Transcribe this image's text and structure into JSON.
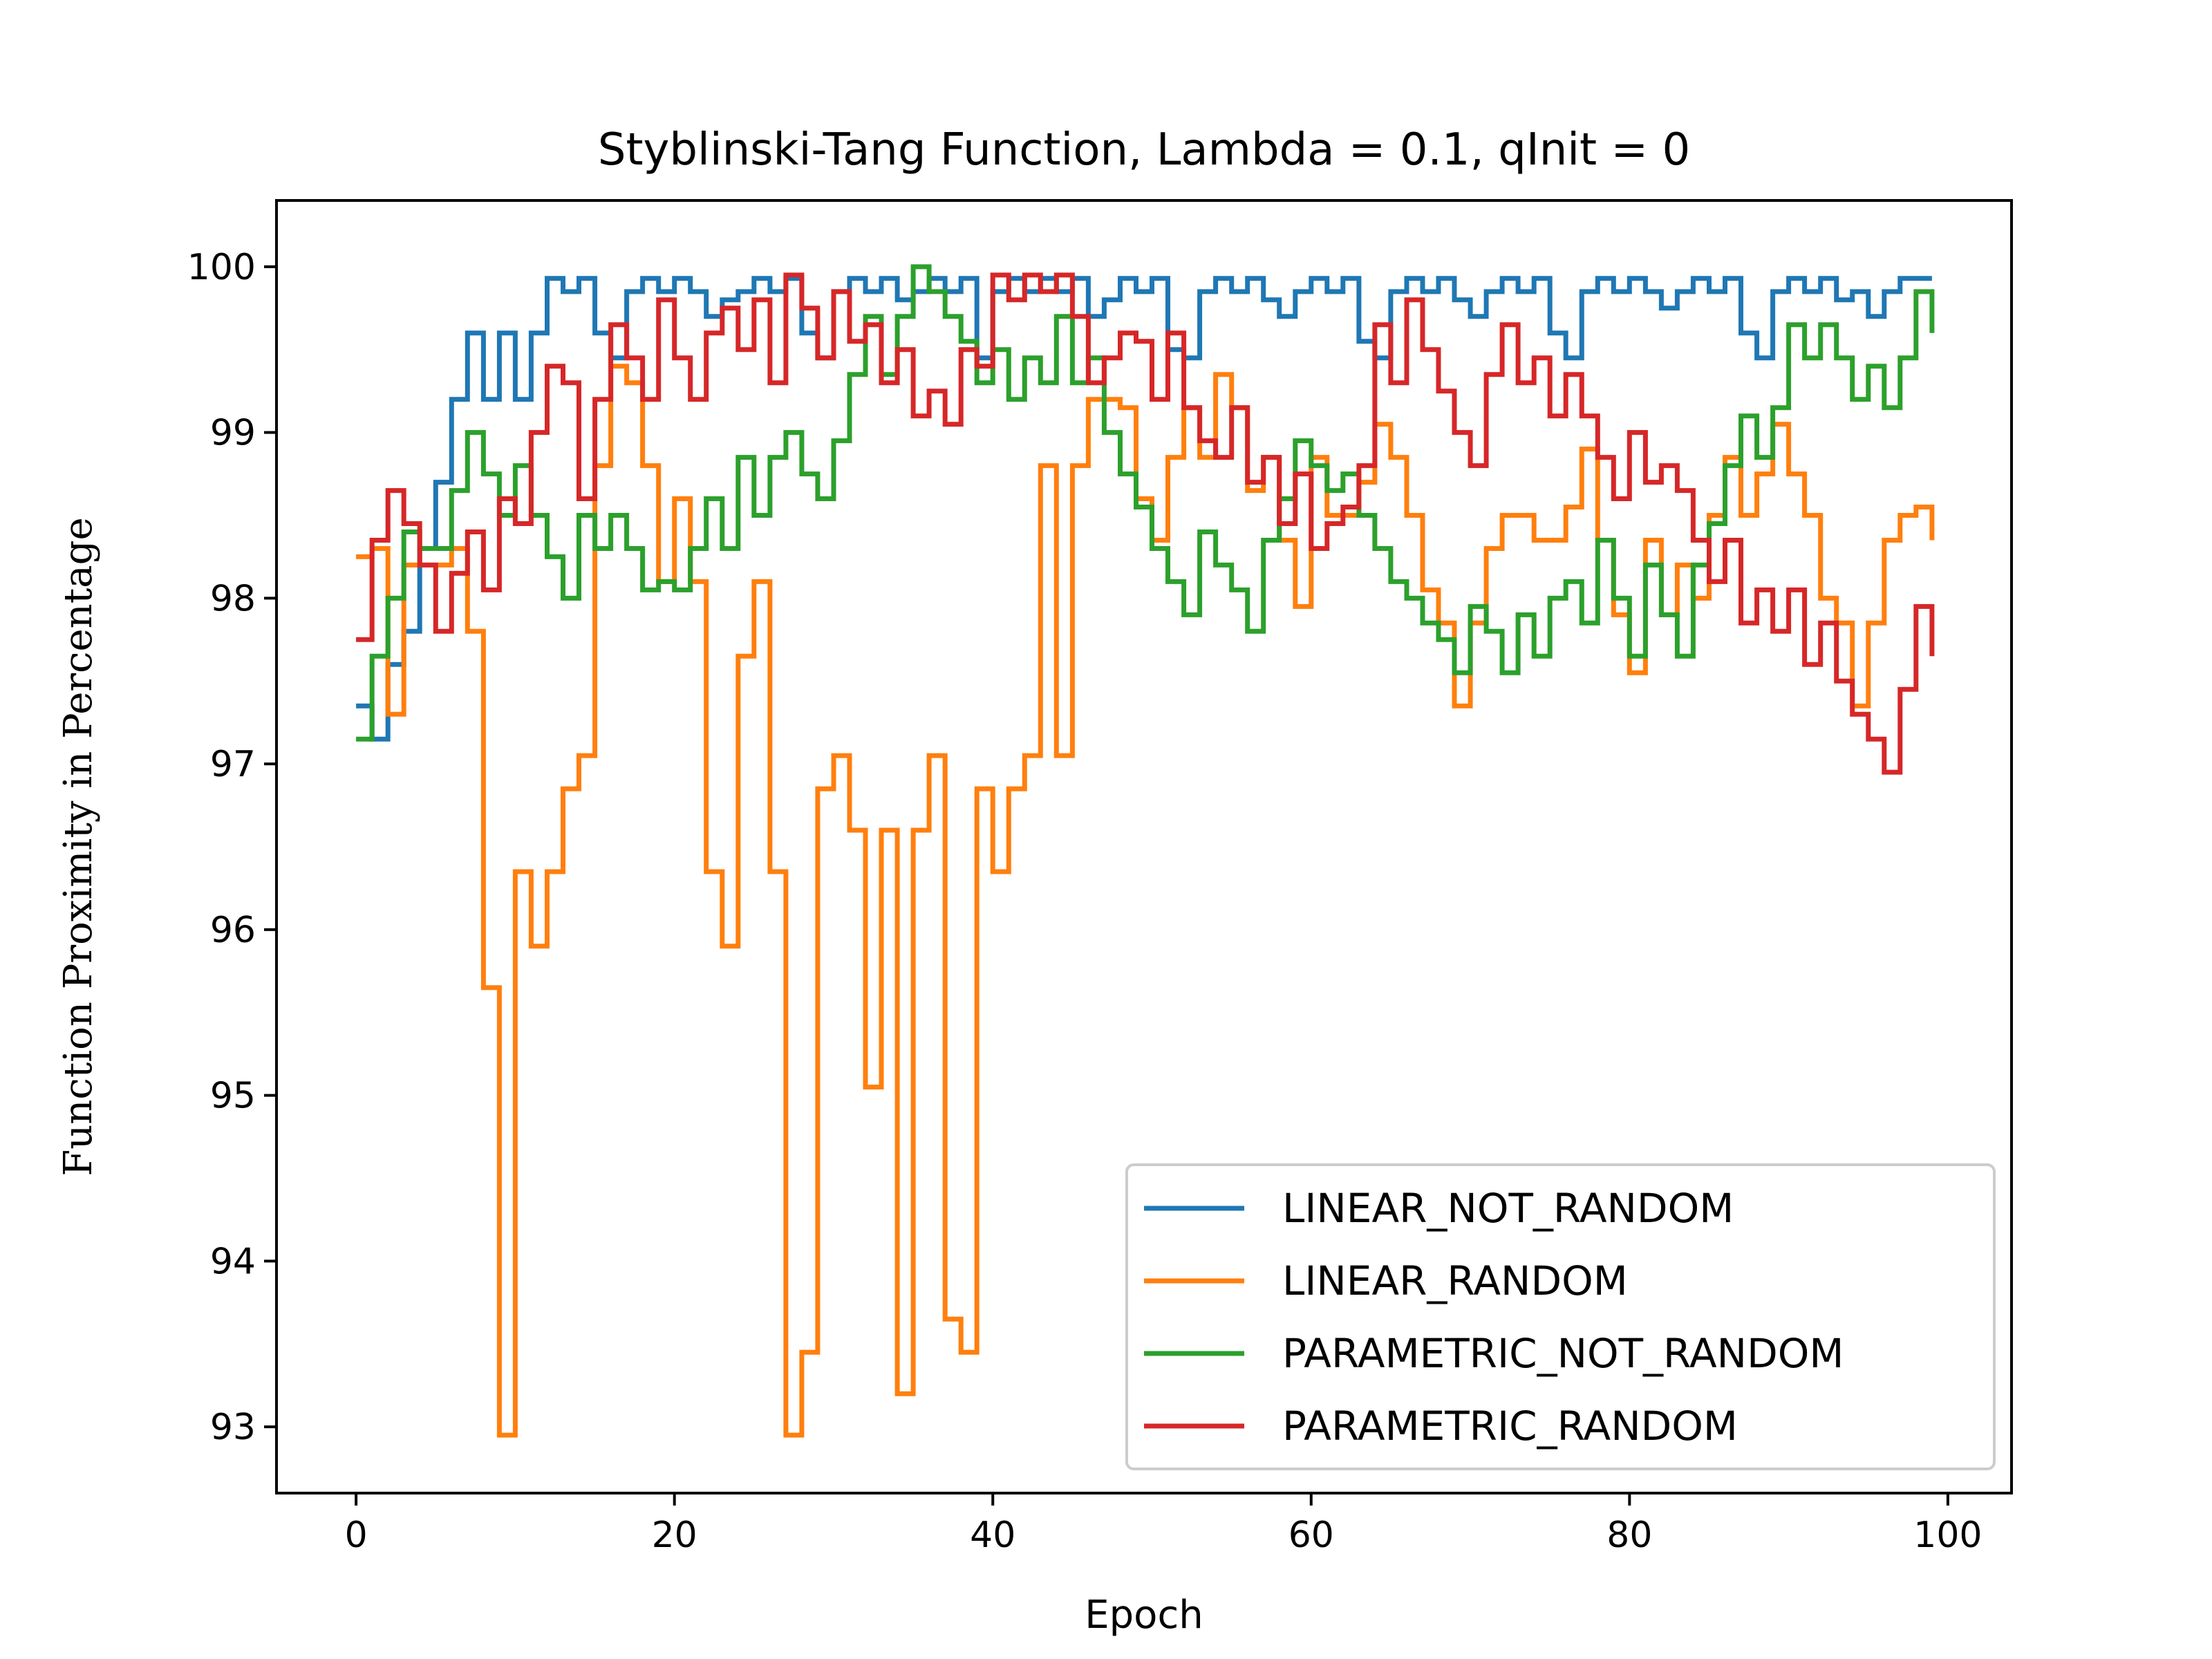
{
  "chart_data": {
    "type": "line",
    "drawstyle": "steps-post",
    "title": "Styblinski-Tang Function, Lambda = 0.1, qInit = 0",
    "xlabel": "Epoch",
    "ylabel": "Function Proximity in Percentage",
    "xlim": [
      -5,
      104
    ],
    "ylim": [
      92.6,
      100.4
    ],
    "xticks": [
      0,
      20,
      40,
      60,
      80,
      100
    ],
    "yticks": [
      93,
      94,
      95,
      96,
      97,
      98,
      99,
      100
    ],
    "grid": false,
    "legend_position": "lower-right",
    "x": [
      0,
      1,
      2,
      3,
      4,
      5,
      6,
      7,
      8,
      9,
      10,
      11,
      12,
      13,
      14,
      15,
      16,
      17,
      18,
      19,
      20,
      21,
      22,
      23,
      24,
      25,
      26,
      27,
      28,
      29,
      30,
      31,
      32,
      33,
      34,
      35,
      36,
      37,
      38,
      39,
      40,
      41,
      42,
      43,
      44,
      45,
      46,
      47,
      48,
      49,
      50,
      51,
      52,
      53,
      54,
      55,
      56,
      57,
      58,
      59,
      60,
      61,
      62,
      63,
      64,
      65,
      66,
      67,
      68,
      69,
      70,
      71,
      72,
      73,
      74,
      75,
      76,
      77,
      78,
      79,
      80,
      81,
      82,
      83,
      84,
      85,
      86,
      87,
      88,
      89,
      90,
      91,
      92,
      93,
      94,
      95,
      96,
      97,
      98,
      99
    ],
    "series": [
      {
        "name": "LINEAR_NOT_RANDOM",
        "color": "#1f77b4",
        "values": [
          97.35,
          97.15,
          97.6,
          97.8,
          98.3,
          98.7,
          99.2,
          99.6,
          99.2,
          99.6,
          99.2,
          99.6,
          99.93,
          99.85,
          99.93,
          99.6,
          99.45,
          99.85,
          99.93,
          99.85,
          99.93,
          99.85,
          99.7,
          99.8,
          99.85,
          99.93,
          99.85,
          99.93,
          99.6,
          99.45,
          99.85,
          99.93,
          99.85,
          99.93,
          99.8,
          99.85,
          99.93,
          99.85,
          99.93,
          99.45,
          99.85,
          99.93,
          99.85,
          99.93,
          99.85,
          99.93,
          99.7,
          99.8,
          99.93,
          99.85,
          99.93,
          99.5,
          99.45,
          99.85,
          99.93,
          99.85,
          99.93,
          99.8,
          99.7,
          99.85,
          99.93,
          99.85,
          99.93,
          99.55,
          99.45,
          99.85,
          99.93,
          99.85,
          99.93,
          99.8,
          99.7,
          99.85,
          99.93,
          99.85,
          99.93,
          99.6,
          99.45,
          99.85,
          99.93,
          99.85,
          99.93,
          99.85,
          99.75,
          99.85,
          99.93,
          99.85,
          99.93,
          99.6,
          99.45,
          99.85,
          99.93,
          99.85,
          99.93,
          99.8,
          99.85,
          99.7,
          99.85,
          99.93,
          99.93,
          99.93
        ]
      },
      {
        "name": "LINEAR_RANDOM",
        "color": "#ff7f0e",
        "values": [
          98.25,
          98.3,
          97.3,
          98.2,
          98.2,
          98.2,
          98.3,
          97.8,
          95.65,
          92.95,
          96.35,
          95.9,
          96.35,
          96.85,
          97.05,
          98.8,
          99.4,
          99.3,
          98.8,
          98.1,
          98.6,
          98.1,
          96.35,
          95.9,
          97.65,
          98.1,
          96.35,
          92.95,
          93.45,
          96.85,
          97.05,
          96.6,
          95.05,
          96.6,
          93.2,
          96.6,
          97.05,
          93.65,
          93.45,
          96.85,
          96.35,
          96.85,
          97.05,
          98.8,
          97.05,
          98.8,
          99.2,
          99.2,
          99.15,
          98.6,
          98.35,
          98.85,
          99.15,
          98.85,
          99.35,
          99.15,
          98.65,
          98.85,
          98.35,
          97.95,
          98.85,
          98.5,
          98.5,
          98.7,
          99.05,
          98.85,
          98.5,
          98.05,
          97.85,
          97.35,
          97.85,
          98.3,
          98.5,
          98.5,
          98.35,
          98.35,
          98.55,
          98.9,
          98.35,
          97.9,
          97.55,
          98.35,
          97.9,
          98.2,
          98.0,
          98.5,
          98.85,
          98.5,
          98.75,
          99.05,
          98.75,
          98.5,
          98.0,
          97.85,
          97.35,
          97.85,
          98.35,
          98.5,
          98.55,
          98.35
        ]
      },
      {
        "name": "PARAMETRIC_NOT_RANDOM",
        "color": "#2ca02c",
        "values": [
          97.15,
          97.65,
          98.0,
          98.4,
          98.3,
          98.3,
          98.65,
          99.0,
          98.75,
          98.5,
          98.8,
          98.5,
          98.25,
          98.0,
          98.5,
          98.3,
          98.5,
          98.3,
          98.05,
          98.1,
          98.05,
          98.3,
          98.6,
          98.3,
          98.85,
          98.5,
          98.85,
          99.0,
          98.75,
          98.6,
          98.95,
          99.35,
          99.7,
          99.35,
          99.7,
          100.0,
          99.85,
          99.7,
          99.55,
          99.3,
          99.5,
          99.2,
          99.45,
          99.3,
          99.7,
          99.3,
          99.45,
          99.0,
          98.75,
          98.55,
          98.3,
          98.1,
          97.9,
          98.4,
          98.2,
          98.05,
          97.8,
          98.35,
          98.6,
          98.95,
          98.8,
          98.65,
          98.75,
          98.5,
          98.3,
          98.1,
          98.0,
          97.85,
          97.75,
          97.55,
          97.95,
          97.8,
          97.55,
          97.9,
          97.65,
          98.0,
          98.1,
          97.85,
          98.35,
          98.0,
          97.65,
          98.2,
          97.9,
          97.65,
          98.2,
          98.45,
          98.8,
          99.1,
          98.85,
          99.15,
          99.65,
          99.45,
          99.65,
          99.45,
          99.2,
          99.4,
          99.15,
          99.45,
          99.85,
          99.6
        ]
      },
      {
        "name": "PARAMETRIC_RANDOM",
        "color": "#d62728",
        "values": [
          97.75,
          98.35,
          98.65,
          98.45,
          98.2,
          97.8,
          98.15,
          98.4,
          98.05,
          98.6,
          98.45,
          99.0,
          99.4,
          99.3,
          98.6,
          99.2,
          99.65,
          99.45,
          99.2,
          99.8,
          99.45,
          99.2,
          99.6,
          99.75,
          99.5,
          99.8,
          99.3,
          99.95,
          99.75,
          99.45,
          99.85,
          99.55,
          99.65,
          99.3,
          99.5,
          99.1,
          99.25,
          99.05,
          99.5,
          99.4,
          99.95,
          99.8,
          99.95,
          99.85,
          99.95,
          99.7,
          99.3,
          99.45,
          99.6,
          99.55,
          99.2,
          99.6,
          99.15,
          98.95,
          98.85,
          99.15,
          98.7,
          98.85,
          98.45,
          98.75,
          98.3,
          98.45,
          98.55,
          98.8,
          99.65,
          99.3,
          99.8,
          99.5,
          99.25,
          99.0,
          98.8,
          99.35,
          99.65,
          99.3,
          99.45,
          99.1,
          99.35,
          99.1,
          98.85,
          98.6,
          99.0,
          98.7,
          98.8,
          98.65,
          98.35,
          98.1,
          98.35,
          97.85,
          98.05,
          97.8,
          98.05,
          97.6,
          97.85,
          97.5,
          97.3,
          97.15,
          96.95,
          97.45,
          97.95,
          97.65
        ]
      }
    ]
  }
}
